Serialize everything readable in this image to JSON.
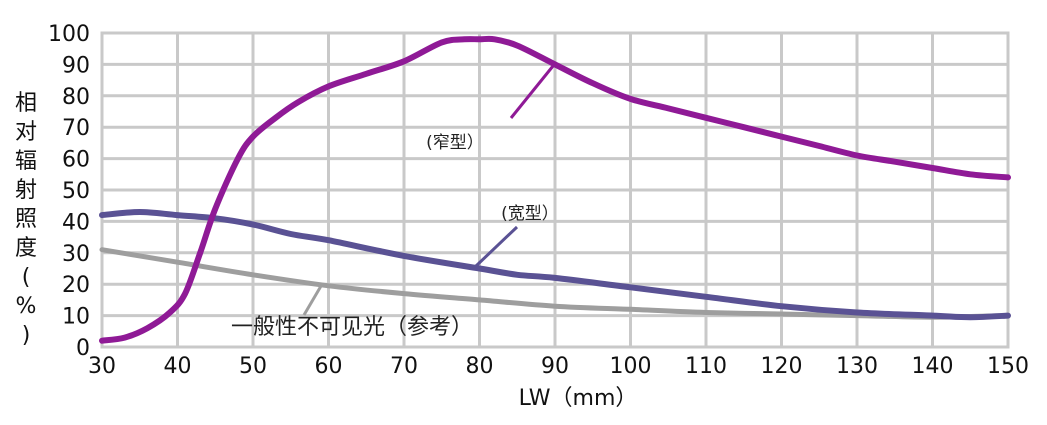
{
  "chart_data": {
    "type": "line",
    "xlabel": "LW（mm）",
    "ylabel": "相对辐射照度(%)",
    "ylabel_chars": [
      "相",
      "对",
      "辐",
      "射",
      "照",
      "度",
      "(",
      "%",
      ")"
    ],
    "xlim": [
      30,
      150
    ],
    "ylim": [
      0,
      100
    ],
    "xticks": [
      30,
      40,
      50,
      60,
      70,
      80,
      90,
      100,
      110,
      120,
      130,
      140,
      150
    ],
    "yticks": [
      0,
      10,
      20,
      30,
      40,
      50,
      60,
      70,
      80,
      90,
      100
    ],
    "grid": true,
    "series": [
      {
        "name": "(窄型）",
        "color": "#8f1a96",
        "x": [
          30,
          33,
          36,
          39,
          41,
          43,
          45,
          48,
          50,
          53,
          56,
          60,
          65,
          70,
          75,
          78,
          80,
          82,
          85,
          90,
          95,
          100,
          105,
          110,
          115,
          120,
          125,
          130,
          135,
          140,
          145,
          150
        ],
        "y": [
          2,
          3,
          6,
          11,
          17,
          30,
          44,
          60,
          67,
          73,
          78,
          83,
          87,
          91,
          97,
          98,
          98,
          98,
          96,
          90,
          84,
          79,
          76,
          73,
          70,
          67,
          64,
          61,
          59,
          57,
          55,
          54
        ]
      },
      {
        "name": "(宽型）",
        "color": "#5a5294",
        "x": [
          30,
          35,
          40,
          45,
          50,
          55,
          60,
          70,
          80,
          85,
          90,
          100,
          110,
          120,
          130,
          140,
          145,
          150
        ],
        "y": [
          42,
          43,
          42,
          41,
          39,
          36,
          34,
          29,
          25,
          23,
          22,
          19,
          16,
          13,
          11,
          10,
          9.5,
          10
        ]
      },
      {
        "name": "一般性不可见光（参考）",
        "color": "#9e9e9e",
        "x": [
          30,
          40,
          50,
          60,
          70,
          80,
          90,
          100,
          110,
          120,
          130,
          140,
          150
        ],
        "y": [
          31,
          27,
          23,
          19.5,
          17,
          15,
          13,
          12,
          11,
          10.5,
          10,
          9.5,
          10
        ]
      }
    ]
  }
}
